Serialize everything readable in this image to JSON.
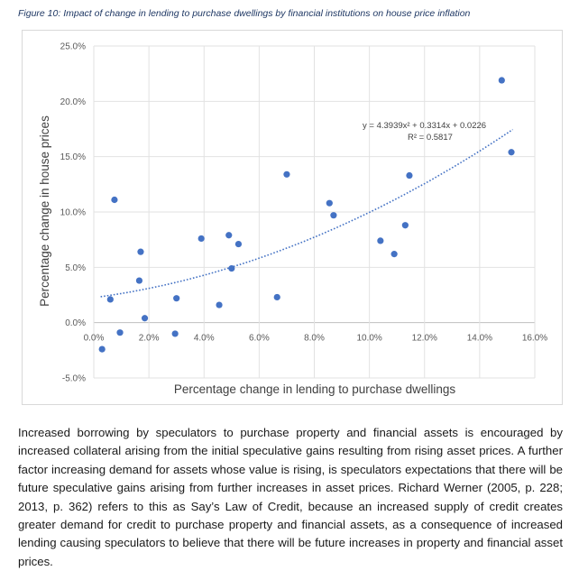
{
  "caption": "Figure 10: Impact of change in lending to purchase dwellings by financial institutions on house price inflation",
  "paragraph": "Increased borrowing by speculators to purchase property and financial assets is encouraged by increased collateral arising from the initial speculative gains resulting from rising asset prices. A further factor increasing demand for assets whose value is rising, is speculators expectations that there will be future speculative gains arising from further increases in asset prices. Richard Werner (2005, p. 228; 2013, p. 362) refers to this as Say’s Law of Credit, because an increased supply of credit creates greater demand for credit to purchase property and financial assets, as a consequence of increased lending causing speculators to believe that there will be future increases in property and financial asset prices.",
  "chart_data": {
    "type": "scatter",
    "title": "",
    "xlabel": "Percentage change in lending to purchase dwellings",
    "ylabel": "Percentage change in house prices",
    "xlim": [
      0,
      16
    ],
    "ylim": [
      -5,
      25
    ],
    "x_ticks": [
      "0.0%",
      "2.0%",
      "4.0%",
      "6.0%",
      "8.0%",
      "10.0%",
      "12.0%",
      "14.0%",
      "16.0%"
    ],
    "y_ticks": [
      "-5.0%",
      "0.0%",
      "5.0%",
      "10.0%",
      "15.0%",
      "20.0%",
      "25.0%"
    ],
    "grid": true,
    "marker_color": "#4472c4",
    "points": [
      {
        "x": 0.3,
        "y": -2.4
      },
      {
        "x": 0.6,
        "y": 2.1
      },
      {
        "x": 0.75,
        "y": 11.1
      },
      {
        "x": 0.95,
        "y": -0.9
      },
      {
        "x": 1.65,
        "y": 3.8
      },
      {
        "x": 1.7,
        "y": 6.4
      },
      {
        "x": 1.85,
        "y": 0.4
      },
      {
        "x": 2.95,
        "y": -1.0
      },
      {
        "x": 3.0,
        "y": 2.2
      },
      {
        "x": 3.9,
        "y": 7.6
      },
      {
        "x": 4.55,
        "y": 1.6
      },
      {
        "x": 4.9,
        "y": 7.9
      },
      {
        "x": 5.0,
        "y": 4.9
      },
      {
        "x": 5.25,
        "y": 7.1
      },
      {
        "x": 6.65,
        "y": 2.3
      },
      {
        "x": 7.0,
        "y": 13.4
      },
      {
        "x": 8.55,
        "y": 10.8
      },
      {
        "x": 8.7,
        "y": 9.7
      },
      {
        "x": 10.4,
        "y": 7.4
      },
      {
        "x": 10.9,
        "y": 6.2
      },
      {
        "x": 11.3,
        "y": 8.8
      },
      {
        "x": 11.45,
        "y": 13.3
      },
      {
        "x": 14.8,
        "y": 21.9
      },
      {
        "x": 15.15,
        "y": 15.4
      }
    ],
    "trendline": {
      "type": "polynomial",
      "coefficients": [
        4.3939,
        0.3314,
        0.0226
      ],
      "x_range": [
        0.25,
        15.2
      ],
      "color": "#4472c4",
      "equation": "y = 4.3939x² + 0.3314x + 0.0226",
      "r_squared": "R² = 0.5817"
    }
  }
}
